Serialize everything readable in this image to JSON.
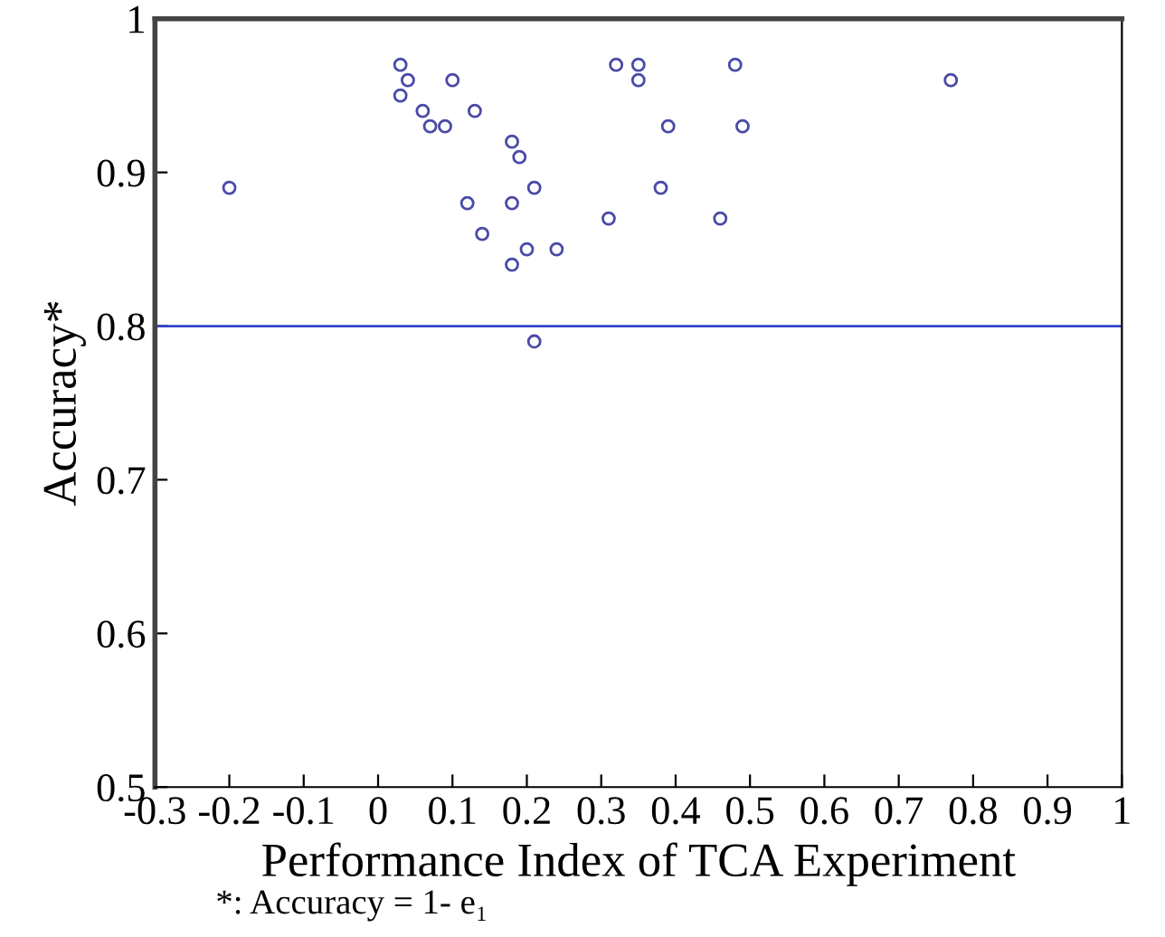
{
  "chart_data": {
    "type": "scatter",
    "xlabel": "Performance Index of TCA Experiment",
    "ylabel": "Accuracy*",
    "annotations": [
      "*: Accuracy = 1- e₁"
    ],
    "marker": "circle",
    "grid": false,
    "xlim": [
      -0.3,
      1
    ],
    "xticks": [
      -0.3,
      -0.2,
      -0.1,
      0,
      0.1,
      0.2,
      0.3,
      0.4,
      0.5,
      0.6,
      0.7,
      0.8,
      0.9,
      1
    ],
    "ylim": [
      0.5,
      1
    ],
    "yticks": [
      0.5,
      0.6,
      0.7,
      0.8,
      0.9,
      1
    ],
    "ref_lines": [
      {
        "axis": "y",
        "value": 0.8,
        "color": "#3344cc",
        "line_style": "solid"
      }
    ],
    "series": [
      {
        "color": "#4a4aa8",
        "x": [
          -0.2,
          0.03,
          0.04,
          0.03,
          0.06,
          0.07,
          0.09,
          0.1,
          0.13,
          0.18,
          0.19,
          0.21,
          0.12,
          0.18,
          0.31,
          0.14,
          0.2,
          0.24,
          0.18,
          0.21,
          0.32,
          0.35,
          0.35,
          0.48,
          0.39,
          0.49,
          0.38,
          0.46,
          0.77
        ],
        "values": [
          0.89,
          0.97,
          0.96,
          0.95,
          0.94,
          0.93,
          0.93,
          0.96,
          0.94,
          0.92,
          0.91,
          0.89,
          0.88,
          0.88,
          0.87,
          0.86,
          0.85,
          0.85,
          0.84,
          0.79,
          0.97,
          0.97,
          0.96,
          0.97,
          0.93,
          0.93,
          0.89,
          0.87,
          0.96
        ]
      }
    ]
  }
}
